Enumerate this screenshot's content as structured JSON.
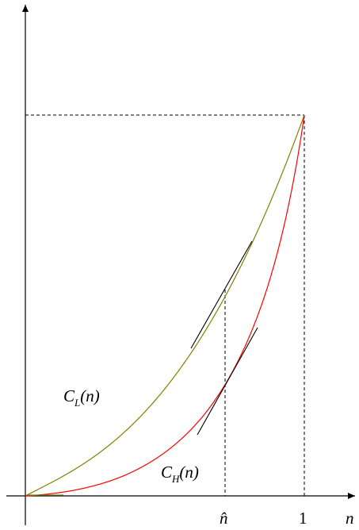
{
  "labels": {
    "curve_low": {
      "symbol": "C",
      "subscript": "L",
      "argument": "(n)"
    },
    "curve_high": {
      "symbol": "C",
      "subscript": "H",
      "argument": "(n)"
    },
    "x_axis_variable": "n",
    "tick_n_hat": "n̂",
    "tick_one": "1"
  },
  "colors": {
    "curve_low": "#808000",
    "curve_high": "#ff0000",
    "axes": "#000000",
    "guides": "#000000"
  },
  "style": {
    "guides": "dashed",
    "tangents": "solid black segments at n̂ on both curves"
  }
}
